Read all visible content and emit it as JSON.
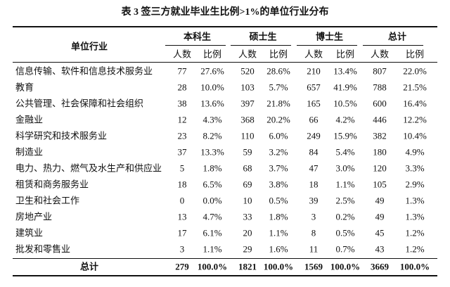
{
  "title": "表 3 签三方就业毕业生比例>1%的单位行业分布",
  "header": {
    "first": "单位行业",
    "groups": [
      "本科生",
      "硕士生",
      "博士生",
      "总计"
    ],
    "sub": [
      "人数",
      "比例",
      "人数",
      "比例",
      "人数",
      "比例",
      "人数",
      "比例"
    ]
  },
  "table": {
    "rows": [
      [
        "信息传输、软件和信息技术服务业",
        "77",
        "27.6%",
        "520",
        "28.6%",
        "210",
        "13.4%",
        "807",
        "22.0%"
      ],
      [
        "教育",
        "28",
        "10.0%",
        "103",
        "5.7%",
        "657",
        "41.9%",
        "788",
        "21.5%"
      ],
      [
        "公共管理、社会保障和社会组织",
        "38",
        "13.6%",
        "397",
        "21.8%",
        "165",
        "10.5%",
        "600",
        "16.4%"
      ],
      [
        "金融业",
        "12",
        "4.3%",
        "368",
        "20.2%",
        "66",
        "4.2%",
        "446",
        "12.2%"
      ],
      [
        "科学研究和技术服务业",
        "23",
        "8.2%",
        "110",
        "6.0%",
        "249",
        "15.9%",
        "382",
        "10.4%"
      ],
      [
        "制造业",
        "37",
        "13.3%",
        "59",
        "3.2%",
        "84",
        "5.4%",
        "180",
        "4.9%"
      ],
      [
        "电力、热力、燃气及水生产和供应业",
        "5",
        "1.8%",
        "68",
        "3.7%",
        "47",
        "3.0%",
        "120",
        "3.3%"
      ],
      [
        "租赁和商务服务业",
        "18",
        "6.5%",
        "69",
        "3.8%",
        "18",
        "1.1%",
        "105",
        "2.9%"
      ],
      [
        "卫生和社会工作",
        "0",
        "0.0%",
        "10",
        "0.5%",
        "39",
        "2.5%",
        "49",
        "1.3%"
      ],
      [
        "房地产业",
        "13",
        "4.7%",
        "33",
        "1.8%",
        "3",
        "0.2%",
        "49",
        "1.3%"
      ],
      [
        "建筑业",
        "17",
        "6.1%",
        "20",
        "1.1%",
        "8",
        "0.5%",
        "45",
        "1.2%"
      ],
      [
        "批发和零售业",
        "3",
        "1.1%",
        "29",
        "1.6%",
        "11",
        "0.7%",
        "43",
        "1.2%"
      ]
    ],
    "total": [
      "总计",
      "279",
      "100.0%",
      "1821",
      "100.0%",
      "1569",
      "100.0%",
      "3669",
      "100.0%"
    ]
  }
}
